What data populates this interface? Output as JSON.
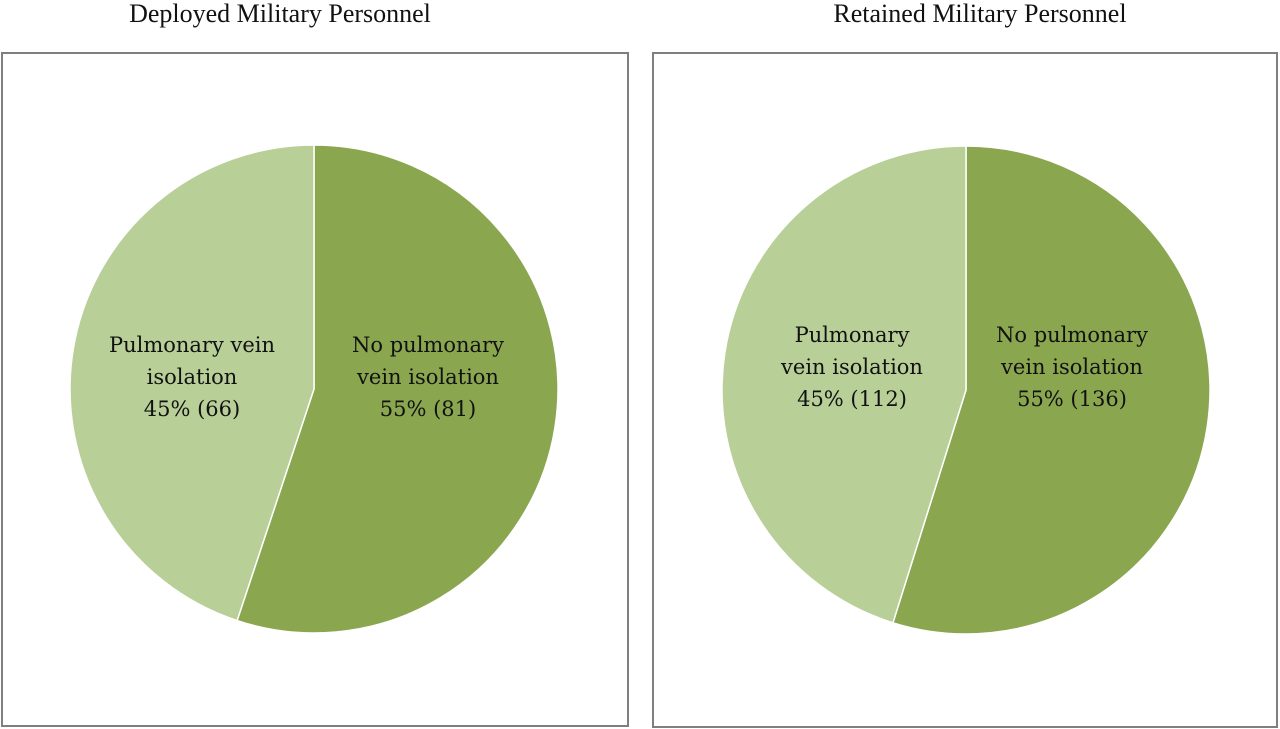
{
  "titles": {
    "left": "Deployed Military Personnel",
    "right": "Retained Military Personnel"
  },
  "colors": {
    "pulmonary_vein_isolation": "#b8cf98",
    "no_pulmonary_vein_isolation": "#8aa64f",
    "frame_border": "#7f7f7f"
  },
  "chart_data": [
    {
      "type": "pie",
      "title": "Deployed Military Personnel",
      "slices": [
        {
          "name": "No pulmonary vein isolation",
          "value": 81,
          "percent": 55,
          "label_lines": [
            "No pulmonary",
            "vein isolation",
            "55% (81)"
          ]
        },
        {
          "name": "Pulmonary vein isolation",
          "value": 66,
          "percent": 45,
          "label_lines": [
            "Pulmonary vein",
            "isolation",
            "45% (66)"
          ]
        }
      ]
    },
    {
      "type": "pie",
      "title": "Retained Military Personnel",
      "slices": [
        {
          "name": "No pulmonary vein isolation",
          "value": 136,
          "percent": 55,
          "label_lines": [
            "No pulmonary",
            "vein isolation",
            "55% (136)"
          ]
        },
        {
          "name": "Pulmonary vein isolation",
          "value": 112,
          "percent": 45,
          "label_lines": [
            "Pulmonary",
            "vein isolation",
            "45% (112)"
          ]
        }
      ]
    }
  ]
}
